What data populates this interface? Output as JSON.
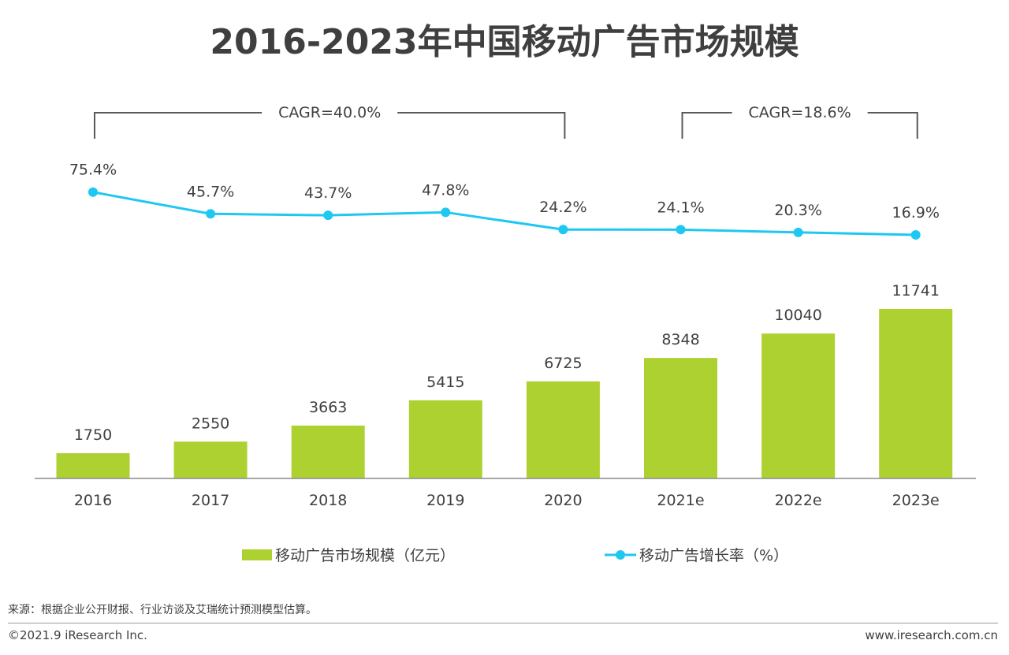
{
  "chart_data": {
    "type": "bar+line",
    "title": "2016-2023年中国移动广告市场规模",
    "categories": [
      "2016",
      "2017",
      "2018",
      "2019",
      "2020",
      "2021e",
      "2022e",
      "2023e"
    ],
    "series": [
      {
        "name": "移动广告市场规模（亿元）",
        "type": "bar",
        "values": [
          1750,
          2550,
          3663,
          5415,
          6725,
          8348,
          10040,
          11741
        ],
        "color": "#aed132"
      },
      {
        "name": "移动广告增长率（%）",
        "type": "line",
        "values": [
          75.4,
          45.7,
          43.7,
          47.8,
          24.2,
          24.1,
          20.3,
          16.9
        ],
        "labels": [
          "75.4%",
          "45.7%",
          "43.7%",
          "47.8%",
          "24.2%",
          "24.1%",
          "20.3%",
          "16.9%"
        ],
        "color": "#1ec8f0"
      }
    ],
    "cagr_annotations": [
      {
        "label": "CAGR=40.0%",
        "from": "2016",
        "to": "2020"
      },
      {
        "label": "CAGR=18.6%",
        "from": "2021e",
        "to": "2023e"
      }
    ],
    "legend_position": "bottom"
  },
  "footer": {
    "source": "来源：根据企业公开财报、行业访谈及艾瑞统计预测模型估算。",
    "copyright": "©2021.9 iResearch Inc.",
    "website": "www.iresearch.com.cn"
  }
}
